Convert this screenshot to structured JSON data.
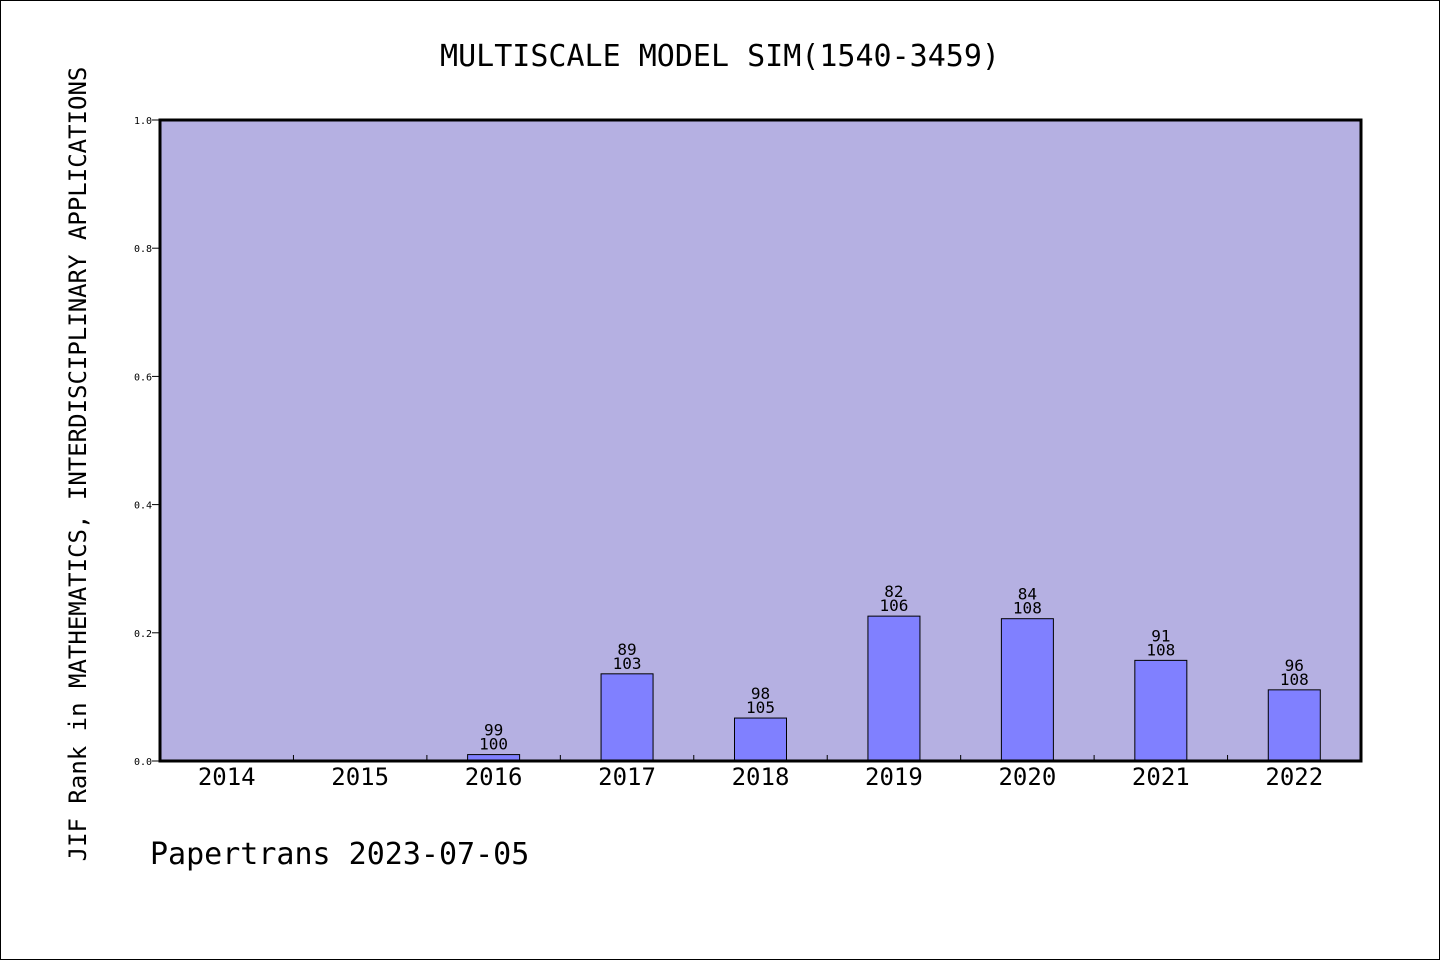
{
  "chart_data": {
    "type": "bar",
    "title": "MULTISCALE MODEL SIM(1540-3459)",
    "ylabel": "JIF Rank in MATHEMATICS,  INTERDISCIPLINARY APPLICATIONS",
    "xlabel": "",
    "footer": "Papertrans 2023-07-05",
    "categories": [
      "2014",
      "2015",
      "2016",
      "2017",
      "2018",
      "2019",
      "2020",
      "2021",
      "2022"
    ],
    "values": [
      0,
      0,
      0.01,
      0.136,
      0.067,
      0.226,
      0.222,
      0.157,
      0.111
    ],
    "rank": [
      null,
      null,
      "99",
      "89",
      "98",
      "82",
      "84",
      "91",
      "96"
    ],
    "total": [
      null,
      null,
      "100",
      "103",
      "105",
      "106",
      "108",
      "108",
      "108"
    ],
    "ylim": [
      0,
      1.0
    ],
    "yticks": [
      "0.0",
      "0.2",
      "0.4",
      "0.6",
      "0.8",
      "1.0"
    ],
    "grid": false,
    "colors": {
      "plot_background": "#b5b0e2",
      "bar_fill": "#8080ff",
      "bar_stroke": "#000000"
    }
  }
}
